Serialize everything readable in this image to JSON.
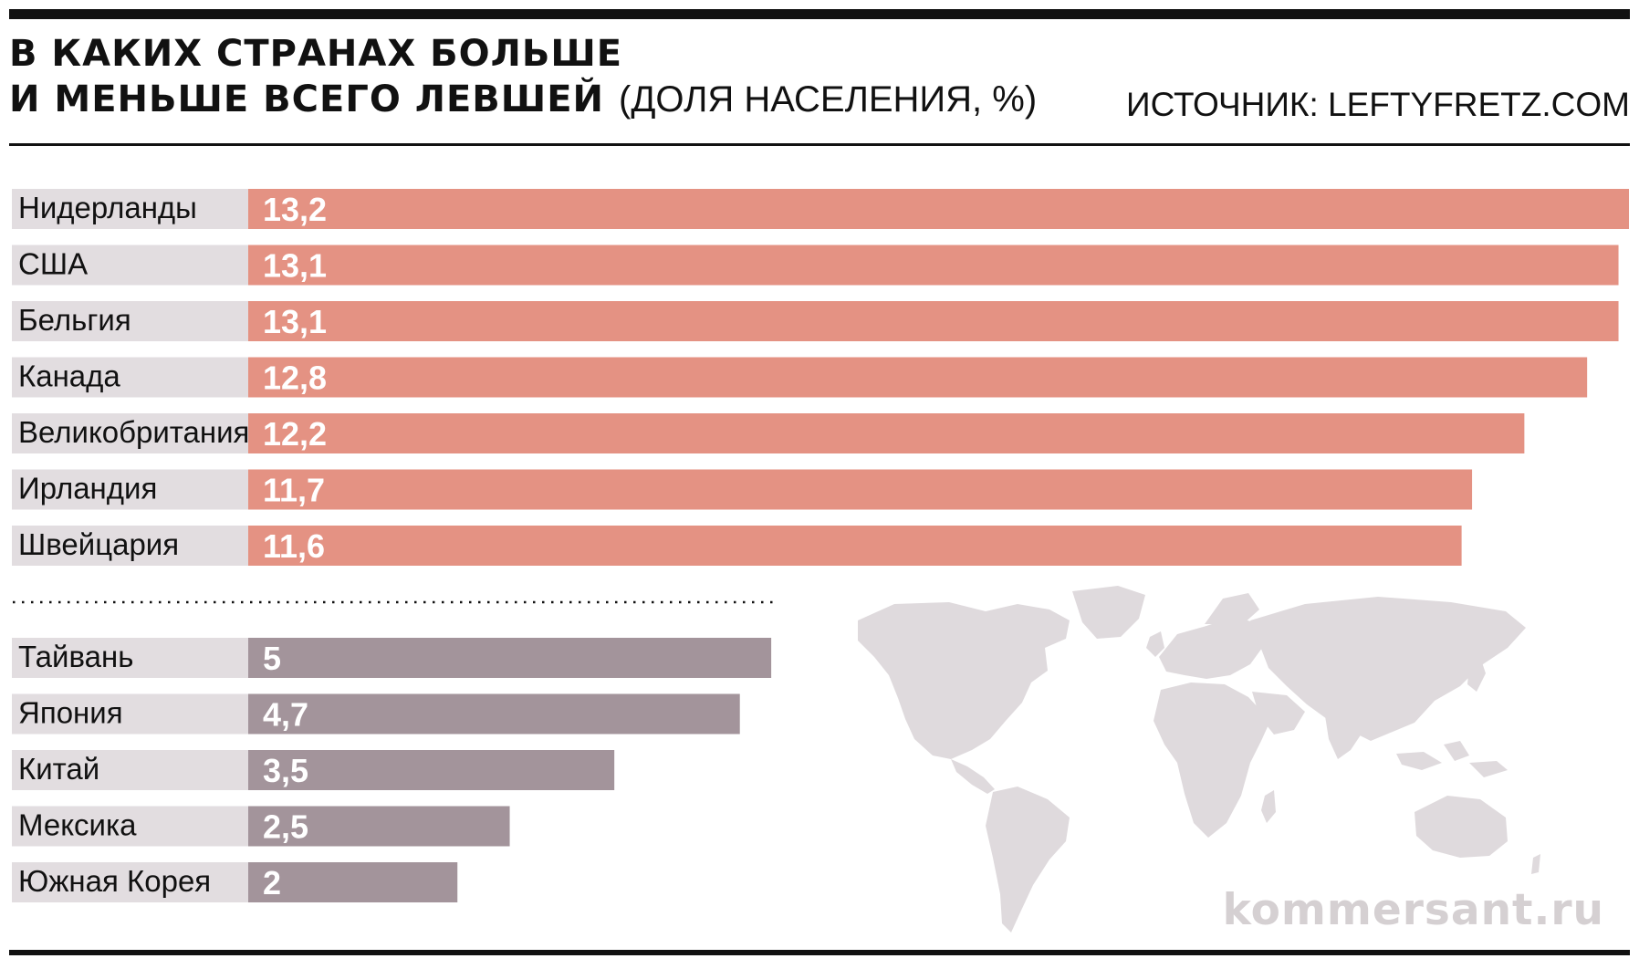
{
  "header": {
    "title_line1": "В КАКИХ СТРАНАХ БОЛЬШЕ",
    "title_line2": "И МЕНЬШЕ ВСЕГО ЛЕВШЕЙ",
    "subtitle": "(ДОЛЯ НАСЕЛЕНИЯ, %)",
    "source": "ИСТОЧНИК: LEFTYFRETZ.COM"
  },
  "watermark": "kommersant.ru",
  "colors": {
    "most_bars": "#e49283",
    "least_bars": "#a3949b",
    "label_background": "#e2dde0",
    "map": "#dfdadd"
  },
  "chart_data": {
    "type": "bar",
    "orientation": "horizontal",
    "title": "В КАКИХ СТРАНАХ БОЛЬШЕ И МЕНЬШЕ ВСЕГО ЛЕВШЕЙ",
    "subtitle": "(ДОЛЯ НАСЕЛЕНИЯ, %)",
    "xlim": [
      0,
      13.2
    ],
    "grid": false,
    "legend": "none",
    "groups": [
      {
        "color": "#e49283",
        "categories": [
          "Нидерланды",
          "США",
          "Бельгия",
          "Канада",
          "Великобритания",
          "Ирландия",
          "Швейцария"
        ],
        "values": [
          13.2,
          13.1,
          13.1,
          12.8,
          12.2,
          11.7,
          11.6
        ],
        "labels": [
          "13,2",
          "13,1",
          "13,1",
          "12,8",
          "12,2",
          "11,7",
          "11,6"
        ]
      },
      {
        "color": "#a3949b",
        "categories": [
          "Тайвань",
          "Япония",
          "Китай",
          "Мексика",
          "Южная Корея"
        ],
        "values": [
          5,
          4.7,
          3.5,
          2.5,
          2
        ],
        "labels": [
          "5",
          "4,7",
          "3,5",
          "2,5",
          "2"
        ]
      }
    ]
  }
}
